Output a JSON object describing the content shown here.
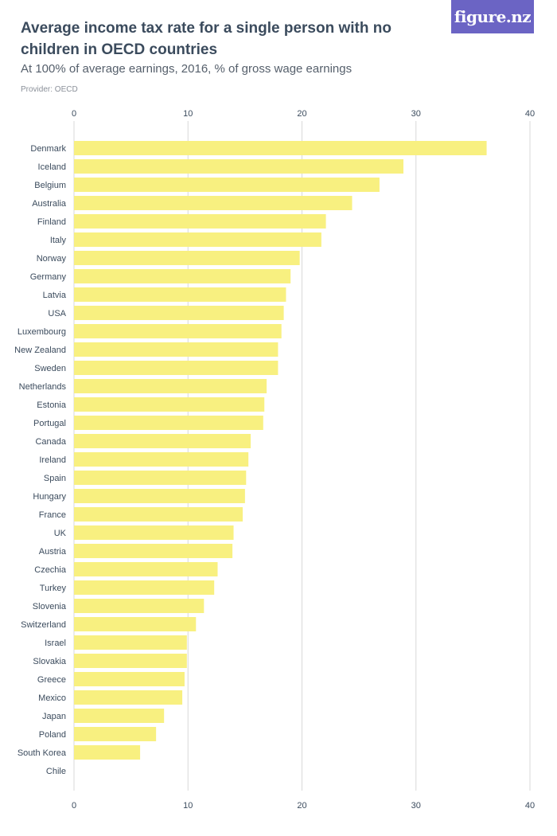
{
  "header": {
    "title": "Average income tax rate for a single person with no children in OECD countries",
    "subtitle": "At 100% of average earnings, 2016, % of gross wage earnings",
    "provider": "Provider: OECD",
    "logo_text": "figure.nz"
  },
  "colors": {
    "bar": "#f8f080",
    "grid": "#d8d8d8",
    "logo_bg": "#6b64c4",
    "text": "#3b4b5d"
  },
  "chart_data": {
    "type": "bar",
    "orientation": "horizontal",
    "title": "Average income tax rate for a single person with no children in OECD countries",
    "subtitle": "At 100% of average earnings, 2016, % of gross wage earnings",
    "xlim": [
      0,
      40
    ],
    "xticks": [
      0,
      10,
      20,
      30,
      40
    ],
    "grid": true,
    "categories": [
      "Denmark",
      "Iceland",
      "Belgium",
      "Australia",
      "Finland",
      "Italy",
      "Norway",
      "Germany",
      "Latvia",
      "USA",
      "Luxembourg",
      "New Zealand",
      "Sweden",
      "Netherlands",
      "Estonia",
      "Portugal",
      "Canada",
      "Ireland",
      "Spain",
      "Hungary",
      "France",
      "UK",
      "Austria",
      "Czechia",
      "Turkey",
      "Slovenia",
      "Switzerland",
      "Israel",
      "Slovakia",
      "Greece",
      "Mexico",
      "Japan",
      "Poland",
      "South Korea",
      "Chile"
    ],
    "values": [
      36.2,
      28.9,
      26.8,
      24.4,
      22.1,
      21.7,
      19.8,
      19.0,
      18.6,
      18.4,
      18.2,
      17.9,
      17.9,
      16.9,
      16.7,
      16.6,
      15.5,
      15.3,
      15.1,
      15.0,
      14.8,
      14.0,
      13.9,
      12.6,
      12.3,
      11.4,
      10.7,
      9.9,
      9.9,
      9.7,
      9.5,
      7.9,
      7.2,
      5.8,
      0
    ]
  }
}
